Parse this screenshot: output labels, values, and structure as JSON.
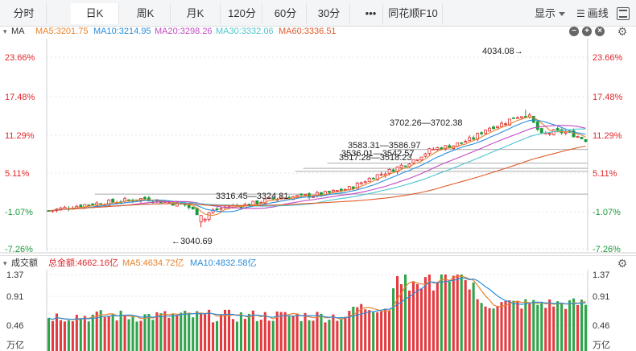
{
  "toolbar": {
    "tabs": [
      {
        "label": "分时"
      },
      {
        "label": "日K"
      },
      {
        "label": "周K"
      },
      {
        "label": "月K"
      },
      {
        "label": "120分"
      },
      {
        "label": "60分"
      },
      {
        "label": "30分"
      },
      {
        "label": "•••"
      },
      {
        "label": "同花顺F10"
      }
    ],
    "active_index": 1,
    "display_label": "显示",
    "draw_label": "画线"
  },
  "main_panel": {
    "indicator_name": "MA",
    "ma5": "MA5:3201.75",
    "ma10": "MA10:3214.95",
    "ma20": "MA20:3298.26",
    "ma30": "MA30:3332.06",
    "ma60": "MA60:3336.51",
    "annotations": [
      {
        "text": "4034.08→"
      },
      {
        "text": "3702.26—3702.38"
      },
      {
        "text": "3583.31—3586.97"
      },
      {
        "text": "3536.01—3542.57"
      },
      {
        "text": "3517.28—3518.23"
      },
      {
        "text": "3316.45—3324.81"
      },
      {
        "text": "←3040.69"
      }
    ]
  },
  "volume_panel": {
    "title": "成交额",
    "total": "总金额:4662.16亿",
    "ma5": "MA5:4634.72亿",
    "ma10": "MA10:4832.58亿",
    "unit": "万亿"
  },
  "colors": {
    "up": "#e0262b",
    "down": "#1a9a3a",
    "ma5": "#e8832a",
    "ma10": "#2a8ddb",
    "ma20": "#c24bc6",
    "ma30": "#4fc4cf",
    "ma60": "#e05a2a"
  },
  "chart_data": [
    {
      "type": "candlestick",
      "y_tick_labels": [
        "23.66%",
        "17.48%",
        "11.29%",
        "5.11%",
        "-1.07%",
        "-7.26%"
      ],
      "y_range_percent": [
        -7.26,
        23.66
      ],
      "candle_count": 135,
      "last_values": {
        "MA5": 3201.75,
        "MA10": 3214.95,
        "MA20": 3298.26,
        "MA30": 3332.06,
        "MA60": 3336.51
      },
      "marked_prices": {
        "high": 4034.08,
        "low": 3040.69
      },
      "price_gaps": [
        [
          3702.26,
          3702.38
        ],
        [
          3583.31,
          3586.97
        ],
        [
          3536.01,
          3542.57
        ],
        [
          3517.28,
          3518.23
        ],
        [
          3316.45,
          3324.81
        ]
      ]
    },
    {
      "type": "bar",
      "y_tick_labels": [
        "1.37",
        "0.91",
        "0.46"
      ],
      "unit": "万亿",
      "last_values": {
        "total_amount_yi": 4662.16,
        "MA5_yi": 4634.72,
        "MA10_yi": 4832.58
      }
    }
  ]
}
